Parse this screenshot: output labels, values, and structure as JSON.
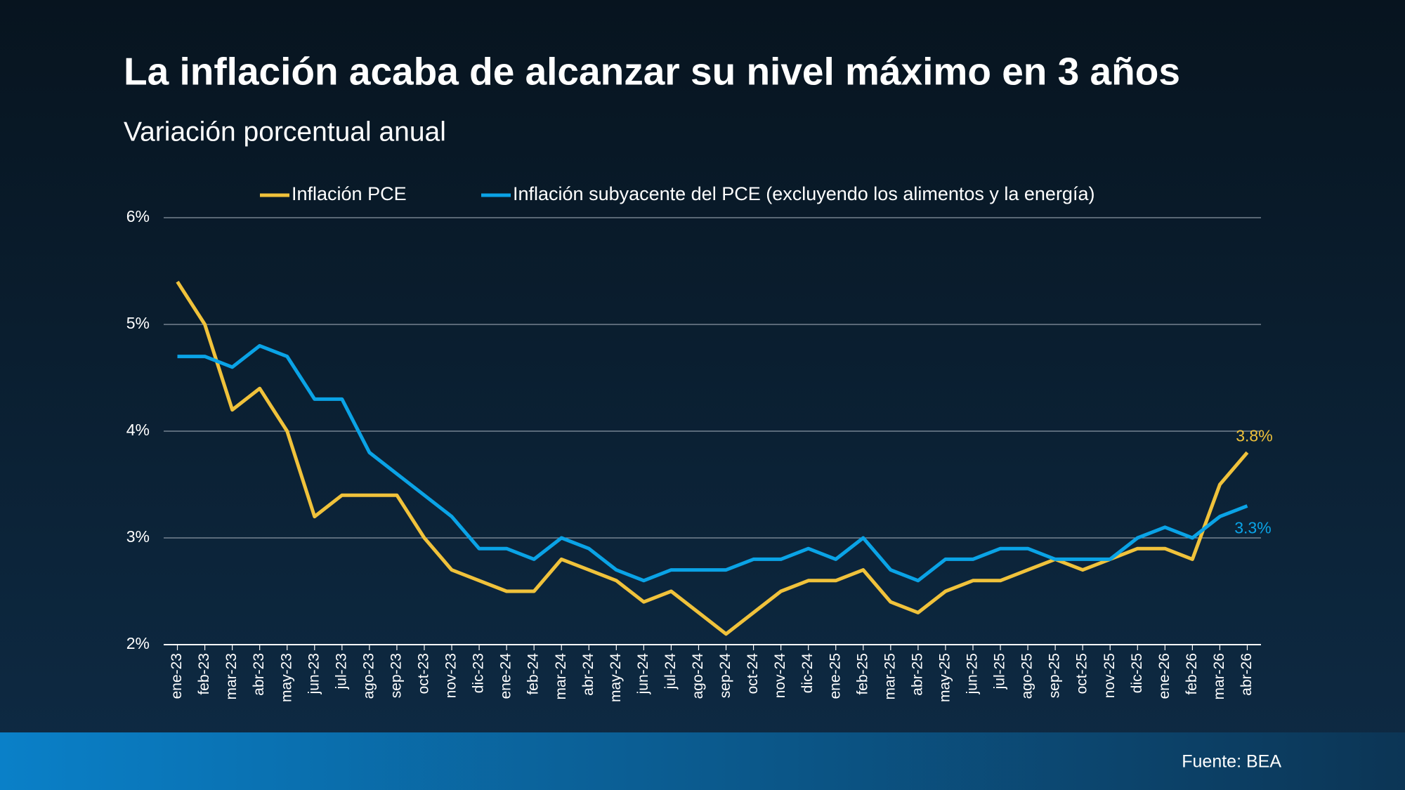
{
  "chart_data": {
    "type": "line",
    "title": "La inflación acaba de alcanzar su nivel máximo  en 3 años",
    "subtitle": "Variación porcentual anual",
    "source": "Fuente: BEA",
    "legend": "top",
    "grid": true,
    "categories": [
      "ene-23",
      "feb-23",
      "mar-23",
      "abr-23",
      "may-23",
      "jun-23",
      "jul-23",
      "ago-23",
      "sep-23",
      "oct-23",
      "nov-23",
      "dic-23",
      "ene-24",
      "feb-24",
      "mar-24",
      "abr-24",
      "may-24",
      "jun-24",
      "jul-24",
      "ago-24",
      "sep-24",
      "oct-24",
      "nov-24",
      "dic-24",
      "ene-25",
      "feb-25",
      "mar-25",
      "abr-25",
      "may-25",
      "jun-25",
      "jul-25",
      "ago-25",
      "sep-25",
      "oct-25",
      "nov-25",
      "dic-25",
      "ene-26",
      "feb-26",
      "mar-26",
      "abr-26"
    ],
    "series": [
      {
        "name": "Inflación PCE",
        "color": "#f0c23b",
        "values": [
          5.4,
          5.0,
          4.2,
          4.4,
          4.0,
          3.2,
          3.4,
          3.4,
          3.4,
          3.0,
          2.7,
          2.6,
          2.5,
          2.5,
          2.8,
          2.7,
          2.6,
          2.4,
          2.5,
          2.3,
          2.1,
          2.3,
          2.5,
          2.6,
          2.6,
          2.7,
          2.4,
          2.3,
          2.5,
          2.6,
          2.6,
          2.7,
          2.8,
          2.7,
          2.8,
          2.9,
          2.9,
          2.8,
          3.5,
          3.8
        ],
        "value_labels": [
          null,
          null,
          null,
          null,
          null,
          null,
          null,
          null,
          null,
          null,
          null,
          null,
          null,
          null,
          null,
          null,
          null,
          null,
          null,
          null,
          null,
          null,
          null,
          null,
          null,
          null,
          null,
          null,
          null,
          null,
          null,
          null,
          null,
          null,
          null,
          null,
          null,
          null,
          null,
          "3.8%"
        ]
      },
      {
        "name": "Inflación subyacente del PCE (excluyendo los alimentos y la energía)",
        "color": "#0aa3e6",
        "values": [
          4.7,
          4.7,
          4.6,
          4.8,
          4.7,
          4.3,
          4.3,
          3.8,
          3.6,
          3.4,
          3.2,
          2.9,
          2.9,
          2.8,
          3.0,
          2.9,
          2.7,
          2.6,
          2.7,
          2.7,
          2.7,
          2.8,
          2.8,
          2.9,
          2.8,
          3.0,
          2.7,
          2.6,
          2.8,
          2.8,
          2.9,
          2.9,
          2.8,
          2.8,
          2.8,
          3.0,
          3.1,
          3.0,
          3.2,
          3.3
        ],
        "value_labels": [
          null,
          null,
          null,
          null,
          null,
          null,
          null,
          null,
          null,
          null,
          null,
          null,
          null,
          null,
          null,
          null,
          null,
          null,
          null,
          null,
          null,
          null,
          null,
          null,
          null,
          null,
          null,
          null,
          null,
          null,
          null,
          null,
          null,
          null,
          null,
          null,
          null,
          null,
          null,
          "3.3%"
        ]
      }
    ],
    "ylim": [
      2,
      6
    ],
    "yticks": [
      {
        "value": 2,
        "label": "2%"
      },
      {
        "value": 3,
        "label": "3%"
      },
      {
        "value": 4,
        "label": "4%"
      },
      {
        "value": 5,
        "label": "5%"
      },
      {
        "value": 6,
        "label": "6%"
      }
    ]
  }
}
